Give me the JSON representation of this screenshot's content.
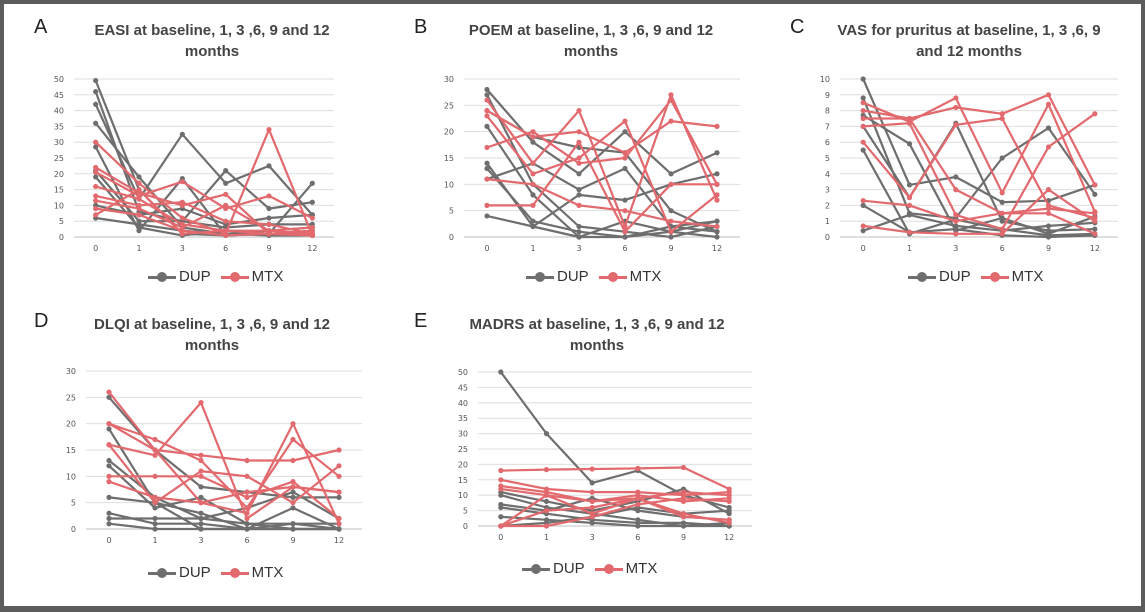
{
  "colors": {
    "DUP": "#6e6e6e",
    "MTX": "#e2696d",
    "grid": "#dedede",
    "axis": "#bfbfbf",
    "tick_text": "#555555"
  },
  "panels": [
    {
      "letter": "A",
      "title": "EASI at baseline, 1, 3 ,6, 9 and 12 months",
      "legend": [
        "DUP",
        "MTX"
      ],
      "chart_data": {
        "type": "line",
        "x": [
          0,
          1,
          3,
          6,
          9,
          12
        ],
        "ylim": [
          0,
          50
        ],
        "yticks": [
          0,
          5,
          10,
          15,
          20,
          25,
          30,
          35,
          40,
          45,
          50
        ],
        "grid": true,
        "legend_position": "bottom",
        "series": [
          {
            "name": "DUP",
            "values": [
              49.5,
              15,
              1,
              0.5,
              1,
              1
            ]
          },
          {
            "name": "DUP",
            "values": [
              46,
              8,
              5,
              3,
              4,
              4
            ]
          },
          {
            "name": "DUP",
            "values": [
              42,
              12,
              32.5,
              17,
              22.5,
              7
            ]
          },
          {
            "name": "DUP",
            "values": [
              36,
              19,
              3,
              1,
              2,
              3
            ]
          },
          {
            "name": "DUP",
            "values": [
              28.5,
              2,
              18.5,
              0.5,
              1,
              17
            ]
          },
          {
            "name": "DUP",
            "values": [
              21,
              5,
              5,
              21,
              9,
              11
            ]
          },
          {
            "name": "DUP",
            "values": [
              19,
              3,
              0.5,
              2,
              1,
              2
            ]
          },
          {
            "name": "DUP",
            "values": [
              10,
              7,
              9,
              4,
              6,
              7
            ]
          },
          {
            "name": "DUP",
            "values": [
              6,
              4,
              2,
              1,
              0.5,
              0.5
            ]
          },
          {
            "name": "MTX",
            "values": [
              30,
              17,
              6,
              1,
              34,
              0.5
            ]
          },
          {
            "name": "MTX",
            "values": [
              22,
              14,
              10,
              13.5,
              1,
              2
            ]
          },
          {
            "name": "MTX",
            "values": [
              20.5,
              13,
              17.5,
              9,
              13,
              6
            ]
          },
          {
            "name": "MTX",
            "values": [
              16,
              12,
              4,
              2,
              2,
              3
            ]
          },
          {
            "name": "MTX",
            "values": [
              13,
              10,
              11,
              5,
              4,
              1
            ]
          },
          {
            "name": "MTX",
            "values": [
              11.5,
              9,
              3,
              10,
              2,
              1
            ]
          },
          {
            "name": "MTX",
            "values": [
              9,
              7,
              2,
              0.5,
              1,
              0.5
            ]
          },
          {
            "name": "MTX",
            "values": [
              7,
              15,
              1,
              2,
              1,
              0.5
            ]
          }
        ]
      }
    },
    {
      "letter": "B",
      "title": "POEM at baseline, 1, 3 ,6, 9 and 12 months",
      "legend": [
        "DUP",
        "MTX"
      ],
      "chart_data": {
        "type": "line",
        "x": [
          0,
          1,
          3,
          6,
          9,
          12
        ],
        "ylim": [
          0,
          30
        ],
        "yticks": [
          0,
          5,
          10,
          15,
          20,
          25,
          30
        ],
        "grid": true,
        "legend_position": "bottom",
        "series": [
          {
            "name": "DUP",
            "values": [
              28,
              18,
              12,
              20,
              12,
              16
            ]
          },
          {
            "name": "DUP",
            "values": [
              27,
              10,
              2,
              1,
              0,
              2
            ]
          },
          {
            "name": "DUP",
            "values": [
              24,
              19,
              17,
              16,
              5,
              1
            ]
          },
          {
            "name": "DUP",
            "values": [
              21,
              8,
              0,
              3,
              1,
              3
            ]
          },
          {
            "name": "DUP",
            "values": [
              14,
              2,
              8,
              7,
              10,
              12
            ]
          },
          {
            "name": "DUP",
            "values": [
              13,
              3,
              1,
              0,
              2,
              3
            ]
          },
          {
            "name": "DUP",
            "values": [
              11,
              14,
              9,
              13,
              2,
              1
            ]
          },
          {
            "name": "DUP",
            "values": [
              4,
              2,
              0,
              0,
              1,
              0
            ]
          },
          {
            "name": "MTX",
            "values": [
              26,
              14,
              24,
              2,
              27,
              7
            ]
          },
          {
            "name": "MTX",
            "values": [
              24,
              19,
              20,
              16,
              22,
              21
            ]
          },
          {
            "name": "MTX",
            "values": [
              23,
              12,
              15,
              22,
              1,
              8
            ]
          },
          {
            "name": "MTX",
            "values": [
              17,
              20,
              14,
              15,
              26,
              10
            ]
          },
          {
            "name": "MTX",
            "values": [
              11,
              10,
              6,
              5,
              3,
              2
            ]
          },
          {
            "name": "MTX",
            "values": [
              6,
              6,
              18,
              1,
              10,
              10
            ]
          }
        ]
      }
    },
    {
      "letter": "C",
      "title": "VAS for pruritus at baseline, 1, 3 ,6, 9 and 12 months",
      "legend": [
        "DUP",
        "MTX"
      ],
      "chart_data": {
        "type": "line",
        "x": [
          0,
          1,
          3,
          6,
          9,
          12
        ],
        "ylim": [
          0,
          10
        ],
        "yticks": [
          0,
          1,
          2,
          3,
          4,
          5,
          6,
          7,
          8,
          9,
          10
        ],
        "grid": true,
        "legend_position": "bottom",
        "series": [
          {
            "name": "DUP",
            "values": [
              10,
              3.3,
              3.8,
              2.2,
              2.3,
              3.3
            ]
          },
          {
            "name": "DUP",
            "values": [
              8.8,
              1.5,
              1.2,
              5,
              6.9,
              2.7
            ]
          },
          {
            "name": "DUP",
            "values": [
              7.7,
              5.9,
              0.4,
              1.2,
              0.2,
              1.3
            ]
          },
          {
            "name": "DUP",
            "values": [
              7,
              2.5,
              7.2,
              1,
              0.4,
              0.5
            ]
          },
          {
            "name": "DUP",
            "values": [
              5.5,
              0.2,
              1.1,
              0.5,
              0.1,
              0.2
            ]
          },
          {
            "name": "DUP",
            "values": [
              2,
              0.3,
              0.5,
              0.1,
              0,
              0.1
            ]
          },
          {
            "name": "DUP",
            "values": [
              0.4,
              1.4,
              0.7,
              0.4,
              0.7,
              0.9
            ]
          },
          {
            "name": "MTX",
            "values": [
              8.5,
              7.3,
              8.8,
              2.8,
              8.4,
              1.6
            ]
          },
          {
            "name": "MTX",
            "values": [
              8,
              7.5,
              8.2,
              7.8,
              9,
              3.3
            ]
          },
          {
            "name": "MTX",
            "values": [
              7.5,
              7.5,
              3,
              1.5,
              1.8,
              1.5
            ]
          },
          {
            "name": "MTX",
            "values": [
              7,
              7.2,
              1.4,
              0.5,
              5.7,
              7.8
            ]
          },
          {
            "name": "MTX",
            "values": [
              6,
              2.5,
              7.1,
              7.5,
              2,
              1.2
            ]
          },
          {
            "name": "MTX",
            "values": [
              2.3,
              2,
              1,
              1.5,
              1.5,
              0.2
            ]
          },
          {
            "name": "MTX",
            "values": [
              0.7,
              0.3,
              0.2,
              0.2,
              3,
              1
            ]
          }
        ]
      }
    },
    {
      "letter": "D",
      "title": "DLQI at baseline, 1, 3 ,6, 9 and 12 months",
      "legend": [
        "DUP",
        "MTX"
      ],
      "chart_data": {
        "type": "line",
        "x": [
          0,
          1,
          3,
          6,
          9,
          12
        ],
        "ylim": [
          0,
          30
        ],
        "yticks": [
          0,
          5,
          10,
          15,
          20,
          25,
          30
        ],
        "grid": true,
        "legend_position": "bottom",
        "series": [
          {
            "name": "DUP",
            "values": [
              25,
              15,
              8,
              7,
              6,
              6
            ]
          },
          {
            "name": "DUP",
            "values": [
              19,
              5,
              3,
              0,
              1,
              1
            ]
          },
          {
            "name": "DUP",
            "values": [
              13,
              6,
              2,
              4,
              7,
              2
            ]
          },
          {
            "name": "DUP",
            "values": [
              12,
              4,
              6,
              1,
              0,
              0
            ]
          },
          {
            "name": "DUP",
            "values": [
              6,
              5,
              0,
              0,
              4,
              0
            ]
          },
          {
            "name": "DUP",
            "values": [
              3,
              1,
              1,
              0,
              0,
              0
            ]
          },
          {
            "name": "DUP",
            "values": [
              2,
              2,
              2,
              1,
              1,
              0
            ]
          },
          {
            "name": "DUP",
            "values": [
              1,
              0,
              0,
              0,
              0,
              0
            ]
          },
          {
            "name": "MTX",
            "values": [
              26,
              15,
              5,
              3,
              20,
              1
            ]
          },
          {
            "name": "MTX",
            "values": [
              20,
              17,
              13,
              4,
              17,
              10
            ]
          },
          {
            "name": "MTX",
            "values": [
              20,
              15,
              14,
              13,
              13,
              15
            ]
          },
          {
            "name": "MTX",
            "values": [
              16,
              14,
              24,
              2,
              8,
              7
            ]
          },
          {
            "name": "MTX",
            "values": [
              16,
              5,
              11,
              10,
              5,
              12
            ]
          },
          {
            "name": "MTX",
            "values": [
              10,
              10,
              10,
              6,
              9,
              2
            ]
          },
          {
            "name": "MTX",
            "values": [
              9,
              6,
              5,
              7,
              8,
              7
            ]
          }
        ]
      }
    },
    {
      "letter": "E",
      "title": "MADRS at baseline, 1, 3 ,6, 9 and 12 months",
      "legend": [
        "DUP",
        "MTX"
      ],
      "chart_data": {
        "type": "line",
        "x": [
          0,
          1,
          3,
          6,
          9,
          12
        ],
        "ylim": [
          0,
          50
        ],
        "yticks": [
          0,
          5,
          10,
          15,
          20,
          25,
          30,
          35,
          40,
          45,
          50
        ],
        "grid": true,
        "legend_position": "bottom",
        "series": [
          {
            "name": "DUP",
            "values": [
              50,
              30,
              14,
              18,
              10,
              6
            ]
          },
          {
            "name": "DUP",
            "values": [
              11,
              8,
              5,
              8,
              12,
              4
            ]
          },
          {
            "name": "DUP",
            "values": [
              10,
              6,
              4,
              2,
              0,
              1
            ]
          },
          {
            "name": "DUP",
            "values": [
              7,
              5,
              9,
              5,
              3,
              2
            ]
          },
          {
            "name": "DUP",
            "values": [
              6,
              4,
              2,
              1,
              1,
              0
            ]
          },
          {
            "name": "DUP",
            "values": [
              3,
              2,
              1,
              0,
              0,
              0
            ]
          },
          {
            "name": "DUP",
            "values": [
              0,
              1,
              3,
              6,
              4,
              5
            ]
          },
          {
            "name": "MTX",
            "values": [
              18,
              18.3,
              18.5,
              18.7,
              19,
              12
            ]
          },
          {
            "name": "MTX",
            "values": [
              15,
              12,
              11,
              11,
              10,
              11
            ]
          },
          {
            "name": "MTX",
            "values": [
              13,
              11,
              8,
              10,
              8,
              9
            ]
          },
          {
            "name": "MTX",
            "values": [
              12,
              10,
              8,
              9,
              11,
              10
            ]
          },
          {
            "name": "MTX",
            "values": [
              0,
              10,
              4,
              9,
              3,
              2
            ]
          },
          {
            "name": "MTX",
            "values": [
              0,
              0,
              3,
              7,
              9,
              8
            ]
          },
          {
            "name": "MTX",
            "values": [
              0,
              5,
              6,
              9,
              4,
              1
            ]
          }
        ]
      }
    }
  ]
}
